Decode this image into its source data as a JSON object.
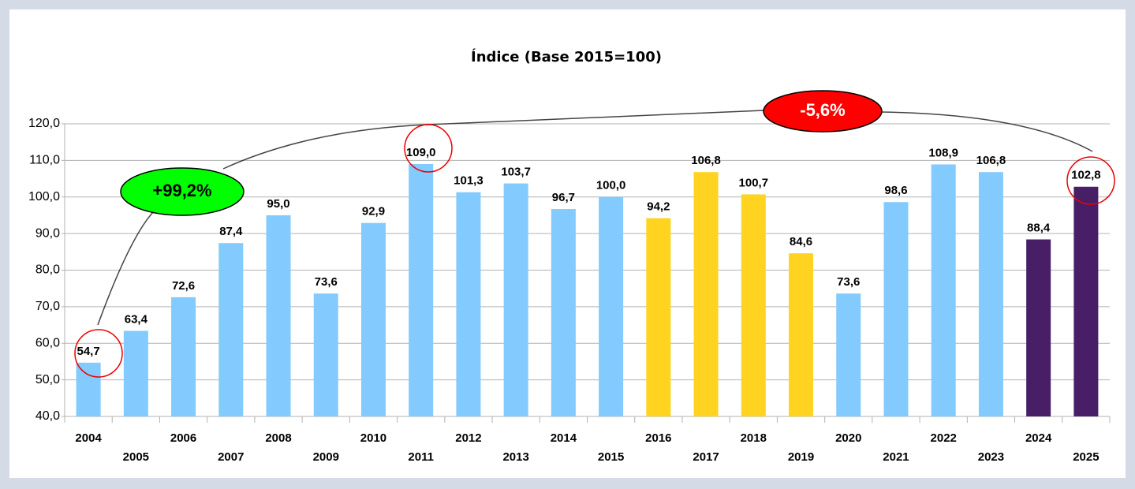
{
  "chart_data": {
    "type": "bar",
    "title": "Índice (Base 2015=100)",
    "categories": [
      "2004",
      "2005",
      "2006",
      "2007",
      "2008",
      "2009",
      "2010",
      "2011",
      "2012",
      "2013",
      "2014",
      "2015",
      "2016",
      "2017",
      "2018",
      "2019",
      "2020",
      "2021",
      "2022",
      "2023",
      "2024",
      "2025"
    ],
    "values": [
      54.7,
      63.4,
      72.6,
      87.4,
      95.0,
      73.6,
      92.9,
      109.0,
      101.3,
      103.7,
      96.7,
      100.0,
      94.2,
      106.8,
      100.7,
      84.6,
      73.6,
      98.6,
      108.9,
      106.8,
      88.4,
      102.8
    ],
    "value_labels": [
      "54,7",
      "63,4",
      "72,6",
      "87,4",
      "95,0",
      "73,6",
      "92,9",
      "109,0",
      "101,3",
      "103,7",
      "96,7",
      "100,0",
      "94,2",
      "106,8",
      "100,7",
      "84,6",
      "73,6",
      "98,6",
      "108,9",
      "106,8",
      "88,4",
      "102,8"
    ],
    "colors": [
      "#83caff",
      "#83caff",
      "#83caff",
      "#83caff",
      "#83caff",
      "#83caff",
      "#83caff",
      "#83caff",
      "#83caff",
      "#83caff",
      "#83caff",
      "#83caff",
      "#ffd320",
      "#ffd320",
      "#ffd320",
      "#ffd320",
      "#83caff",
      "#83caff",
      "#83caff",
      "#83caff",
      "#481f67",
      "#481f67"
    ],
    "ylim": [
      40,
      120
    ],
    "yticks": [
      {
        "value": 40,
        "label": "40,0"
      },
      {
        "value": 50,
        "label": "50,0"
      },
      {
        "value": 60,
        "label": "60,0"
      },
      {
        "value": 70,
        "label": "70,0"
      },
      {
        "value": 80,
        "label": "80,0"
      },
      {
        "value": 90,
        "label": "90,0"
      },
      {
        "value": 100,
        "label": "100,0"
      },
      {
        "value": 110,
        "label": "110,0"
      },
      {
        "value": 120,
        "label": "120,0"
      }
    ],
    "grid": true,
    "annotations": [
      {
        "text": "+99,2%",
        "color": "#00ff00"
      },
      {
        "text": "-5,6%",
        "color": "#ff0000"
      }
    ]
  }
}
